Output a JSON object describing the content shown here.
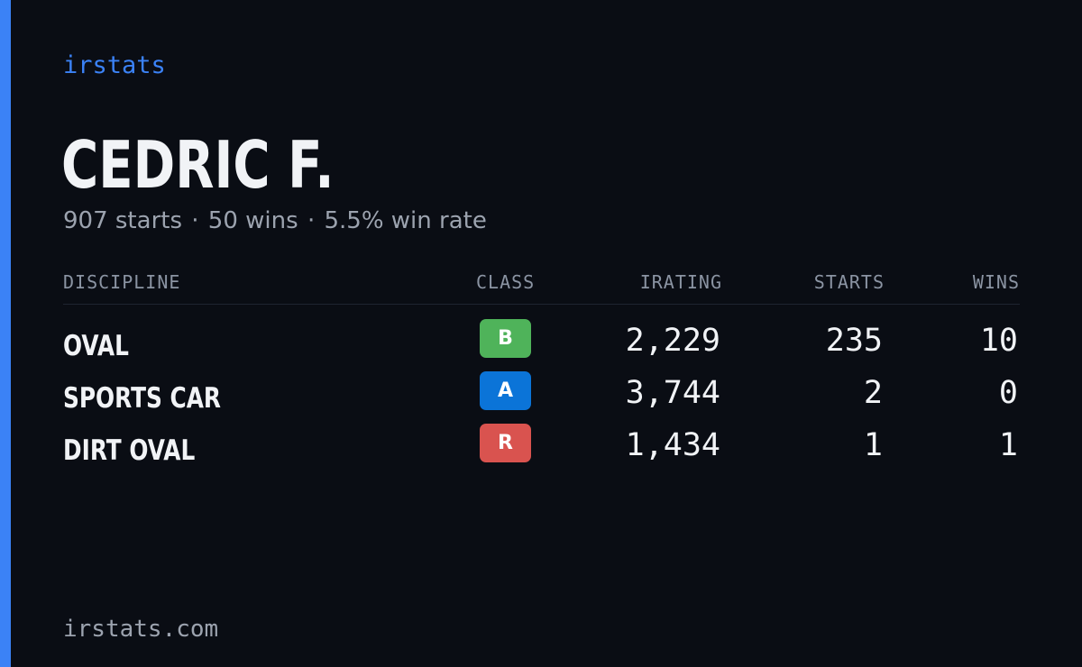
{
  "brand": "irstats",
  "driver": {
    "name": "CEDRIC F."
  },
  "summary": {
    "starts": "907 starts",
    "wins": "50 wins",
    "win_rate": "5.5% win rate",
    "separator": "·"
  },
  "table": {
    "headers": {
      "discipline": "DISCIPLINE",
      "class": "CLASS",
      "irating": "IRATING",
      "starts": "STARTS",
      "wins": "WINS"
    },
    "rows": [
      {
        "discipline": "OVAL",
        "class": "B",
        "class_color": "#4fb35a",
        "irating": "2,229",
        "starts": "235",
        "wins": "10"
      },
      {
        "discipline": "SPORTS CAR",
        "class": "A",
        "class_color": "#0b74d8",
        "irating": "3,744",
        "starts": "2",
        "wins": "0"
      },
      {
        "discipline": "DIRT OVAL",
        "class": "R",
        "class_color": "#d9534f",
        "irating": "1,434",
        "starts": "1",
        "wins": "1"
      }
    ]
  },
  "footer": {
    "url": "irstats.com"
  },
  "colors": {
    "background": "#0a0d14",
    "accent": "#3b82f6",
    "text_primary": "#f1f3f6",
    "text_muted": "#9ca3af"
  }
}
